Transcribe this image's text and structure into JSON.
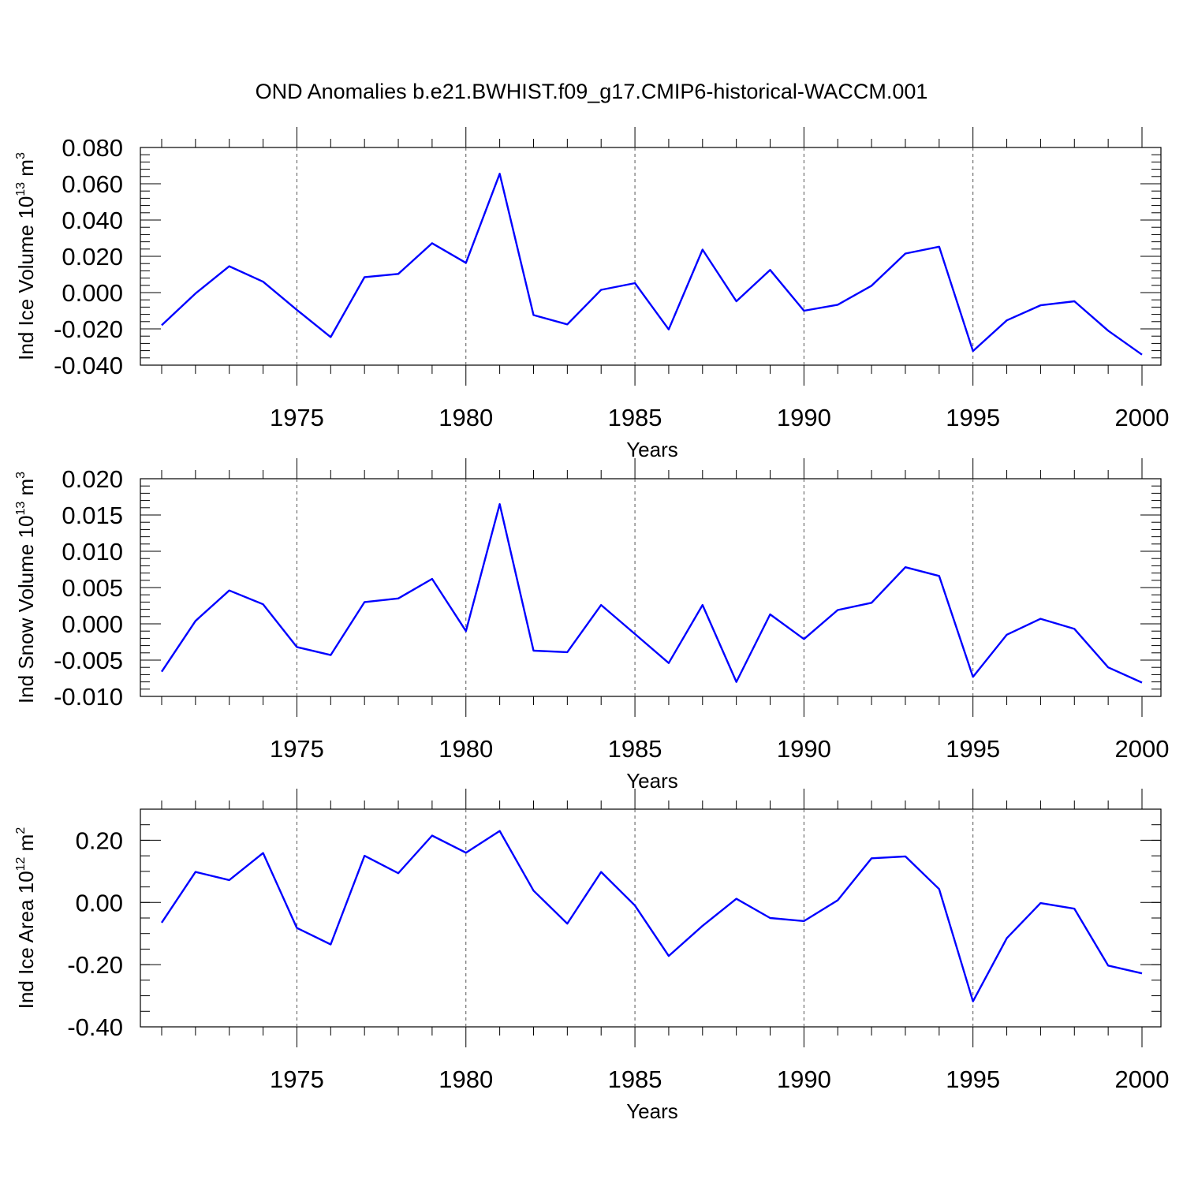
{
  "title": "OND Anomalies b.e21.BWHIST.f09_g17.CMIP6-historical-WACCM.001",
  "chart_data": [
    {
      "type": "line",
      "xlabel": "Years",
      "ylabel": {
        "base": "Ind Ice Volume 10",
        "exp": "13",
        "unit": " m",
        "unit_exp": "3"
      },
      "xlim": [
        1971,
        2000
      ],
      "ylim": [
        -0.04,
        0.08
      ],
      "yticks": [
        -0.04,
        -0.02,
        0.0,
        0.02,
        0.04,
        0.06,
        0.08
      ],
      "ytick_labels": [
        "-0.040",
        "-0.020",
        "0.000",
        "0.020",
        "0.040",
        "0.060",
        "0.080"
      ],
      "yminor_step": 0.004,
      "xticks": [
        1975,
        1980,
        1985,
        1990,
        1995,
        2000
      ],
      "xtick_labels": [
        "1975",
        "1980",
        "1985",
        "1990",
        "1995",
        "2000"
      ],
      "grid": "x-dashed",
      "color": "#0000ff",
      "series": [
        {
          "x": [
            1971,
            1972,
            1973,
            1974,
            1975,
            1976,
            1977,
            1978,
            1979,
            1980,
            1981,
            1982,
            1983,
            1984,
            1985,
            1986,
            1987,
            1988,
            1989,
            1990,
            1991,
            1992,
            1993,
            1994,
            1995,
            1996,
            1997,
            1998,
            1999,
            2000
          ],
          "values": [
            -0.018,
            -0.0005,
            0.0145,
            0.006,
            -0.0095,
            -0.0245,
            0.0085,
            0.0103,
            0.0272,
            0.0164,
            0.0655,
            -0.0124,
            -0.0175,
            0.0015,
            0.0052,
            -0.0203,
            0.0237,
            -0.0048,
            0.0125,
            -0.01,
            -0.0067,
            0.0038,
            0.0215,
            0.0253,
            -0.0322,
            -0.0153,
            -0.007,
            -0.0048,
            -0.021,
            -0.0342
          ]
        }
      ]
    },
    {
      "type": "line",
      "xlabel": "Years",
      "ylabel": {
        "base": "Ind Snow Volume 10",
        "exp": "13",
        "unit": " m",
        "unit_exp": "3"
      },
      "xlim": [
        1971,
        2000
      ],
      "ylim": [
        -0.01,
        0.02
      ],
      "yticks": [
        -0.01,
        -0.005,
        0.0,
        0.005,
        0.01,
        0.015,
        0.02
      ],
      "ytick_labels": [
        "-0.010",
        "-0.005",
        "0.000",
        "0.005",
        "0.010",
        "0.015",
        "0.020"
      ],
      "yminor_step": 0.001,
      "xticks": [
        1975,
        1980,
        1985,
        1990,
        1995,
        2000
      ],
      "xtick_labels": [
        "1975",
        "1980",
        "1985",
        "1990",
        "1995",
        "2000"
      ],
      "grid": "x-dashed",
      "color": "#0000ff",
      "series": [
        {
          "x": [
            1971,
            1972,
            1973,
            1974,
            1975,
            1976,
            1977,
            1978,
            1979,
            1980,
            1981,
            1982,
            1983,
            1984,
            1985,
            1986,
            1987,
            1988,
            1989,
            1990,
            1991,
            1992,
            1993,
            1994,
            1995,
            1996,
            1997,
            1998,
            1999,
            2000
          ],
          "values": [
            -0.0066,
            0.0004,
            0.0046,
            0.0027,
            -0.0032,
            -0.0043,
            0.003,
            0.0035,
            0.0062,
            -0.001,
            0.0165,
            -0.0037,
            -0.0039,
            0.0026,
            -0.0014,
            -0.0054,
            0.0026,
            -0.008,
            0.0013,
            -0.0021,
            0.0019,
            0.0029,
            0.0078,
            0.0066,
            -0.0073,
            -0.0015,
            0.0007,
            -0.0007,
            -0.006,
            -0.0081
          ]
        }
      ]
    },
    {
      "type": "line",
      "xlabel": "Years",
      "ylabel": {
        "base": "Ind Ice Area 10",
        "exp": "12",
        "unit": " m",
        "unit_exp": "2"
      },
      "xlim": [
        1971,
        2000
      ],
      "ylim": [
        -0.4,
        0.3
      ],
      "yticks": [
        -0.4,
        -0.2,
        0.0,
        0.2
      ],
      "ytick_labels": [
        "-0.40",
        "-0.20",
        "0.00",
        "0.20"
      ],
      "yminor_step": 0.05,
      "xticks": [
        1975,
        1980,
        1985,
        1990,
        1995,
        2000
      ],
      "xtick_labels": [
        "1975",
        "1980",
        "1985",
        "1990",
        "1995",
        "2000"
      ],
      "grid": "x-dashed",
      "color": "#0000ff",
      "series": [
        {
          "x": [
            1971,
            1972,
            1973,
            1974,
            1975,
            1976,
            1977,
            1978,
            1979,
            1980,
            1981,
            1982,
            1983,
            1984,
            1985,
            1986,
            1987,
            1988,
            1989,
            1990,
            1991,
            1992,
            1993,
            1994,
            1995,
            1996,
            1997,
            1998,
            1999,
            2000
          ],
          "values": [
            -0.065,
            0.098,
            0.072,
            0.159,
            -0.082,
            -0.135,
            0.15,
            0.094,
            0.215,
            0.16,
            0.23,
            0.038,
            -0.068,
            0.098,
            -0.01,
            -0.172,
            -0.075,
            0.012,
            -0.05,
            -0.06,
            0.007,
            0.142,
            0.148,
            0.043,
            -0.318,
            -0.115,
            -0.002,
            -0.02,
            -0.203,
            -0.228
          ]
        }
      ]
    }
  ]
}
